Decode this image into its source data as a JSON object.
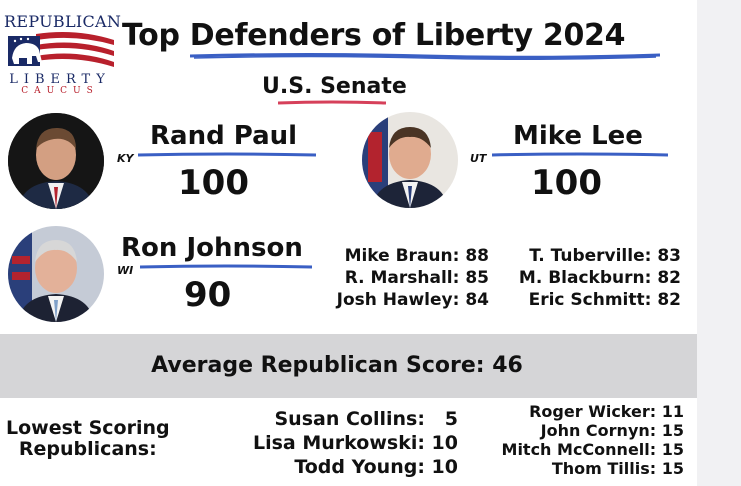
{
  "logo": {
    "top_text": "REPUBLICAN",
    "middle_text": "LIBERTY",
    "bottom_text": "CAUCUS",
    "colors": {
      "navy": "#1a2a66",
      "red": "#b8202c"
    }
  },
  "title": "Top Defenders of Liberty 2024",
  "subtitle": "U.S. Senate",
  "accent_colors": {
    "blue_underline": "#3a5fc4",
    "red_underline": "#d6405a"
  },
  "top_senators": [
    {
      "name": "Rand Paul",
      "state": "KY",
      "score": "100"
    },
    {
      "name": "Mike Lee",
      "state": "UT",
      "score": "100"
    },
    {
      "name": "Ron Johnson",
      "state": "WI",
      "score": "90"
    }
  ],
  "other_high_scores": {
    "column1": [
      "Mike Braun: 88",
      "R. Marshall: 85",
      "Josh Hawley: 84"
    ],
    "column2": [
      "T. Tuberville: 83",
      "M. Blackburn: 82",
      "Eric Schmitt: 82"
    ]
  },
  "average": "Average Republican Score: 46",
  "lowest": {
    "label_line1": "Lowest Scoring",
    "label_line2": "Republicans:",
    "column1": [
      "Susan Collins:   5",
      "Lisa Murkowski: 10",
      "Todd Young: 10"
    ],
    "column2": [
      "Roger Wicker: 11",
      "John Cornyn: 15",
      "Mitch McConnell: 15",
      "Thom Tillis: 15"
    ]
  }
}
